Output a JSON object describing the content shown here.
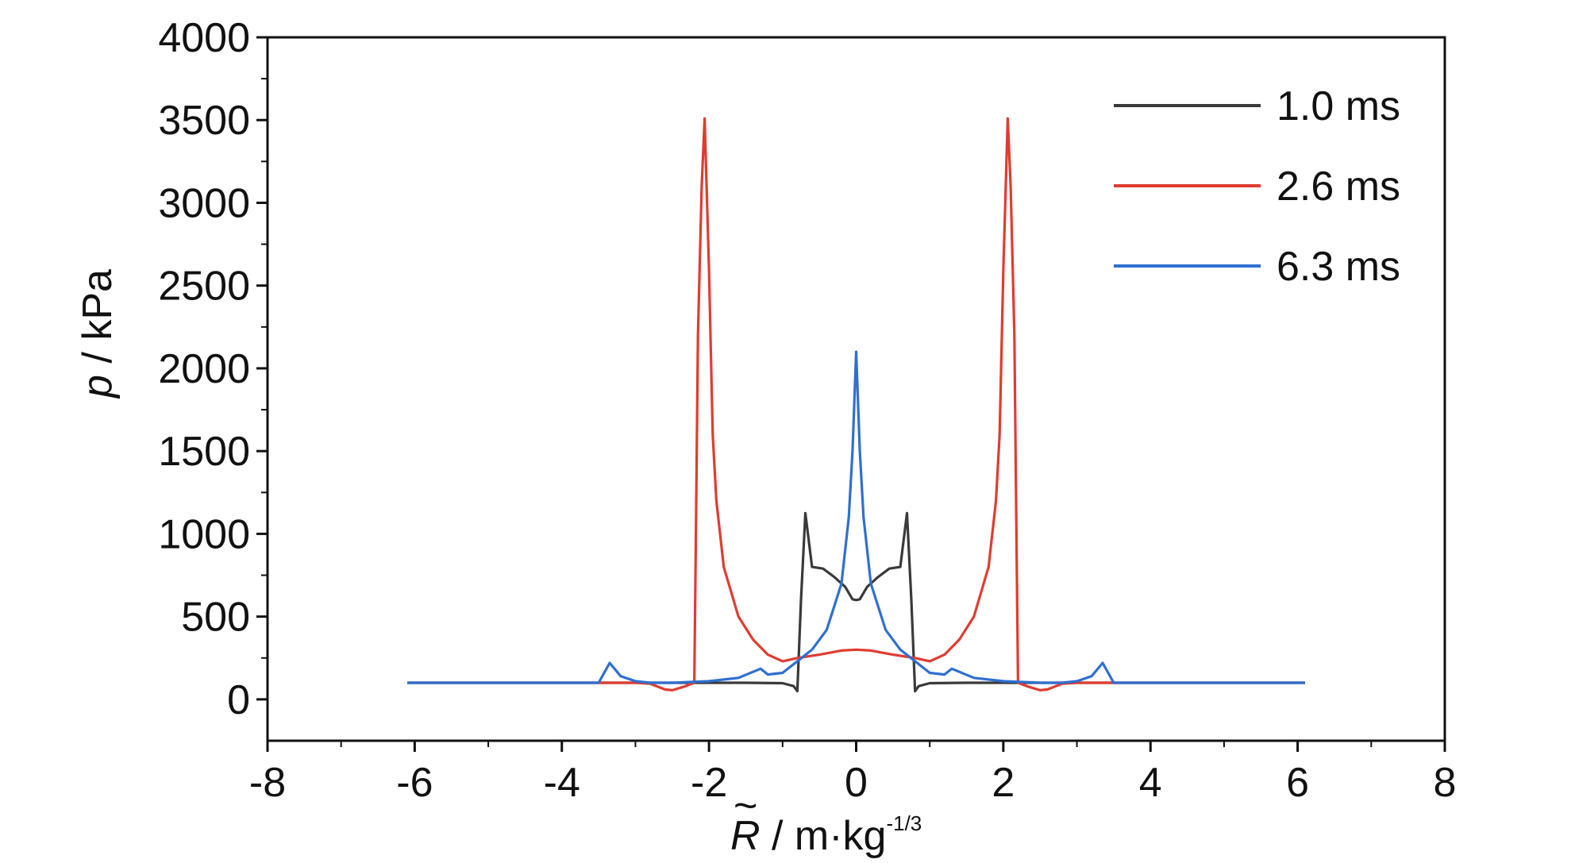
{
  "chart_data": {
    "type": "line",
    "xlabel": {
      "symbol": "R",
      "accent": "~",
      "unit": " / m·kg",
      "exponent": "-1/3"
    },
    "ylabel": {
      "symbol": "p",
      "unit": " / kPa"
    },
    "xlim": [
      -8,
      8
    ],
    "ylim": [
      -250,
      4000
    ],
    "x_ticks": [
      "-8",
      "-6",
      "-4",
      "-2",
      "0",
      "2",
      "4",
      "6",
      "8"
    ],
    "y_ticks": [
      "0",
      "500",
      "1000",
      "1500",
      "2000",
      "2500",
      "3000",
      "3500",
      "4000"
    ],
    "grid": false,
    "legend_position": "top-right",
    "series": [
      {
        "name": "1.0 ms",
        "color": "#3a3a3a",
        "points": [
          [
            -6.1,
            100
          ],
          [
            -3.5,
            100
          ],
          [
            -1.5,
            100
          ],
          [
            -1.0,
            98
          ],
          [
            -0.85,
            80
          ],
          [
            -0.8,
            50
          ],
          [
            -0.75,
            600
          ],
          [
            -0.69,
            1125
          ],
          [
            -0.6,
            800
          ],
          [
            -0.45,
            790
          ],
          [
            -0.3,
            740
          ],
          [
            -0.15,
            680
          ],
          [
            -0.05,
            605
          ],
          [
            0,
            600
          ],
          [
            0.05,
            605
          ],
          [
            0.15,
            680
          ],
          [
            0.3,
            740
          ],
          [
            0.45,
            790
          ],
          [
            0.6,
            800
          ],
          [
            0.69,
            1125
          ],
          [
            0.75,
            600
          ],
          [
            0.8,
            50
          ],
          [
            0.85,
            80
          ],
          [
            1.0,
            98
          ],
          [
            1.5,
            100
          ],
          [
            3.5,
            100
          ],
          [
            6.1,
            100
          ]
        ]
      },
      {
        "name": "2.6 ms",
        "color": "#e03c31",
        "points": [
          [
            -6.1,
            100
          ],
          [
            -3.5,
            100
          ],
          [
            -3.0,
            100
          ],
          [
            -2.8,
            95
          ],
          [
            -2.6,
            60
          ],
          [
            -2.5,
            55
          ],
          [
            -2.35,
            75
          ],
          [
            -2.2,
            100
          ],
          [
            -2.18,
            900
          ],
          [
            -2.15,
            2200
          ],
          [
            -2.1,
            3100
          ],
          [
            -2.06,
            3510
          ],
          [
            -2.0,
            2600
          ],
          [
            -1.95,
            1600
          ],
          [
            -1.9,
            1200
          ],
          [
            -1.8,
            800
          ],
          [
            -1.6,
            500
          ],
          [
            -1.4,
            360
          ],
          [
            -1.2,
            270
          ],
          [
            -1.0,
            230
          ],
          [
            -0.8,
            250
          ],
          [
            -0.5,
            270
          ],
          [
            -0.2,
            295
          ],
          [
            0,
            300
          ],
          [
            0.2,
            295
          ],
          [
            0.5,
            270
          ],
          [
            0.8,
            250
          ],
          [
            1.0,
            230
          ],
          [
            1.2,
            270
          ],
          [
            1.4,
            360
          ],
          [
            1.6,
            500
          ],
          [
            1.8,
            800
          ],
          [
            1.9,
            1200
          ],
          [
            1.95,
            1600
          ],
          [
            2.0,
            2600
          ],
          [
            2.06,
            3510
          ],
          [
            2.1,
            3100
          ],
          [
            2.15,
            2200
          ],
          [
            2.18,
            900
          ],
          [
            2.2,
            100
          ],
          [
            2.35,
            75
          ],
          [
            2.5,
            55
          ],
          [
            2.6,
            60
          ],
          [
            2.8,
            95
          ],
          [
            3.0,
            100
          ],
          [
            3.5,
            100
          ],
          [
            6.1,
            100
          ]
        ]
      },
      {
        "name": "6.3 ms",
        "color": "#2f6fd1",
        "points": [
          [
            -6.1,
            100
          ],
          [
            -3.5,
            100
          ],
          [
            -3.35,
            220
          ],
          [
            -3.2,
            140
          ],
          [
            -3.0,
            110
          ],
          [
            -2.8,
            100
          ],
          [
            -2.5,
            100
          ],
          [
            -2.0,
            110
          ],
          [
            -1.6,
            130
          ],
          [
            -1.3,
            185
          ],
          [
            -1.2,
            150
          ],
          [
            -1.0,
            160
          ],
          [
            -0.8,
            230
          ],
          [
            -0.6,
            300
          ],
          [
            -0.4,
            420
          ],
          [
            -0.2,
            700
          ],
          [
            -0.1,
            1100
          ],
          [
            -0.05,
            1500
          ],
          [
            0,
            2100
          ],
          [
            0.05,
            1500
          ],
          [
            0.1,
            1100
          ],
          [
            0.2,
            700
          ],
          [
            0.4,
            420
          ],
          [
            0.6,
            300
          ],
          [
            0.8,
            230
          ],
          [
            1.0,
            160
          ],
          [
            1.2,
            150
          ],
          [
            1.3,
            185
          ],
          [
            1.6,
            130
          ],
          [
            2.0,
            110
          ],
          [
            2.5,
            100
          ],
          [
            2.8,
            100
          ],
          [
            3.0,
            110
          ],
          [
            3.2,
            140
          ],
          [
            3.35,
            220
          ],
          [
            3.5,
            100
          ],
          [
            6.1,
            100
          ]
        ]
      }
    ]
  }
}
